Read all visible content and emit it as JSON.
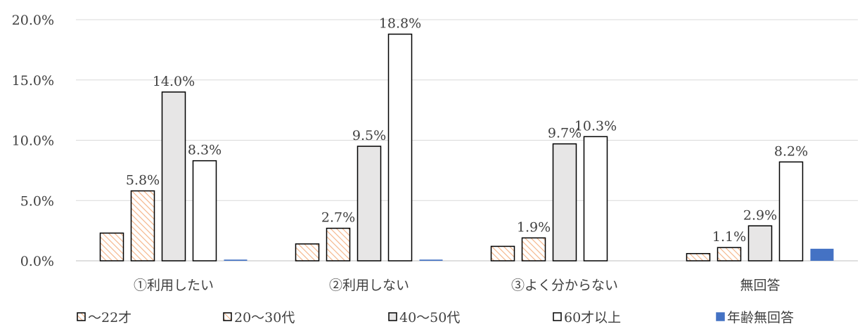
{
  "chart_data": {
    "type": "bar",
    "categories": [
      "①利用したい",
      "②利用しない",
      "③よく分からない",
      "無回答"
    ],
    "ylim": [
      0,
      20
    ],
    "yticks": [
      "0.0%",
      "5.0%",
      "10.0%",
      "15.0%",
      "20.0%"
    ],
    "grid": true,
    "legend_position": "bottom",
    "series": [
      {
        "name": "〜22才",
        "values": [
          2.3,
          1.4,
          1.2,
          0.6
        ],
        "labels": [
          "",
          "",
          "",
          ""
        ],
        "pattern": "hatch",
        "color": "#f4b183"
      },
      {
        "name": "20〜30代",
        "values": [
          5.8,
          2.7,
          1.9,
          1.1
        ],
        "labels": [
          "5.8%",
          "2.7%",
          "1.9%",
          "1.1%"
        ],
        "pattern": "hatch",
        "color": "#f4b183"
      },
      {
        "name": "40〜50代",
        "values": [
          14.0,
          9.5,
          9.7,
          2.9
        ],
        "labels": [
          "14.0%",
          "9.5%",
          "9.7%",
          "2.9%"
        ],
        "pattern": "solid",
        "color": "#e7e6e6"
      },
      {
        "name": "60才以上",
        "values": [
          8.3,
          18.8,
          10.3,
          8.2
        ],
        "labels": [
          "8.3%",
          "18.8%",
          "10.3%",
          "8.2%"
        ],
        "pattern": "solid",
        "color": "#ffffff"
      },
      {
        "name": "年齢無回答",
        "values": [
          0.1,
          0.1,
          0.0,
          1.0
        ],
        "labels": [
          "",
          "",
          "",
          ""
        ],
        "pattern": "solid",
        "color": "#4472c4"
      }
    ]
  }
}
